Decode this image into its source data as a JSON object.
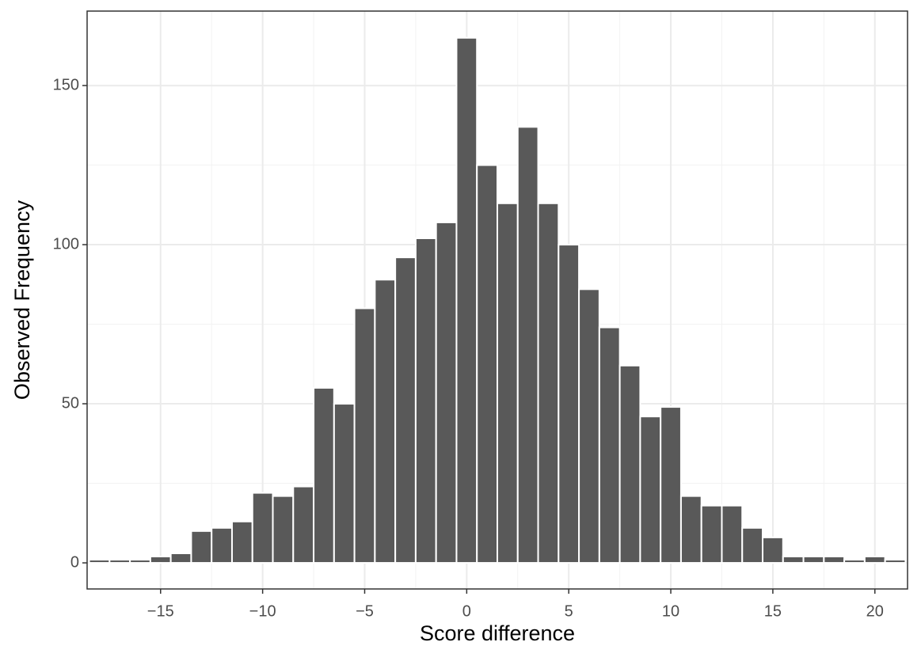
{
  "chart_data": {
    "type": "histogram",
    "xlabel": "Score difference",
    "ylabel": "Observed Frequency",
    "bins": [
      -18.5,
      -17.5,
      -16.5,
      -15.5,
      -14.5,
      -13.5,
      -12.5,
      -11.5,
      -10.5,
      -9.5,
      -8.5,
      -7.5,
      -6.5,
      -5.5,
      -4.5,
      -3.5,
      -2.5,
      -1.5,
      -0.5,
      0.5,
      1.5,
      2.5,
      3.5,
      4.5,
      5.5,
      6.5,
      7.5,
      8.5,
      9.5,
      10.5,
      11.5,
      12.5,
      13.5,
      14.5,
      15.5,
      16.5,
      17.5,
      18.5,
      19.5,
      20.5,
      21.5
    ],
    "values": [
      1,
      1,
      1,
      2,
      3,
      10,
      11,
      13,
      22,
      21,
      24,
      55,
      50,
      80,
      89,
      96,
      102,
      107,
      165,
      125,
      113,
      137,
      113,
      100,
      86,
      74,
      62,
      46,
      49,
      21,
      18,
      18,
      11,
      8,
      2,
      2,
      2,
      1,
      2,
      1
    ],
    "color": "#595959",
    "xlim": [
      -18.6,
      21.6
    ],
    "ylim": [
      -8.2,
      173.4
    ],
    "xticks": [
      {
        "value": -15,
        "label": "−15"
      },
      {
        "value": -10,
        "label": "−10"
      },
      {
        "value": -5,
        "label": "−5"
      },
      0,
      5,
      10,
      15,
      20
    ],
    "yticks": [
      0,
      50,
      100,
      150
    ],
    "grid": true
  }
}
